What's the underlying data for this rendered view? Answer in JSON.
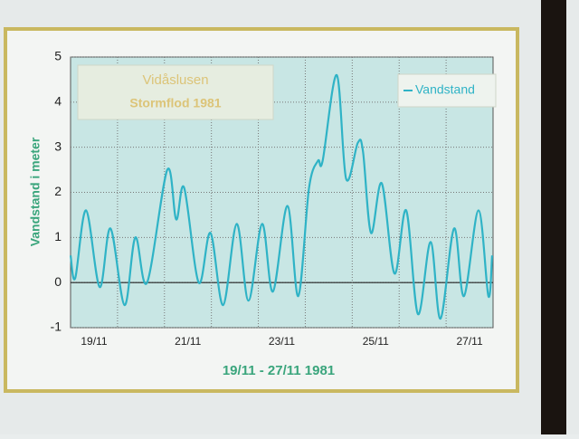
{
  "chart_data": {
    "type": "line",
    "title": "Vidåslusen",
    "subtitle": "Stormflod 1981",
    "x_label": "19/11 - 27/11 1981",
    "y_label": "Vandstand i meter",
    "x": [
      19.0,
      19.1,
      19.33,
      19.62,
      19.85,
      20.15,
      20.38,
      20.63,
      21.06,
      21.25,
      21.42,
      21.73,
      21.98,
      22.25,
      22.54,
      22.79,
      23.08,
      23.31,
      23.62,
      23.85,
      24.08,
      24.27,
      24.37,
      24.67,
      24.87,
      25.12,
      25.23,
      25.4,
      25.63,
      25.9,
      26.15,
      26.4,
      26.67,
      26.88,
      27.17,
      27.38,
      27.69,
      27.9,
      27.98
    ],
    "series": [
      {
        "name": "Vandstand",
        "color": "#2fb3c6",
        "values": [
          0.6,
          0.1,
          1.6,
          -0.1,
          1.2,
          -0.5,
          1.0,
          0.0,
          2.5,
          1.4,
          2.1,
          0.0,
          1.1,
          -0.5,
          1.3,
          -0.4,
          1.3,
          -0.2,
          1.7,
          -0.3,
          2.1,
          2.7,
          2.7,
          4.6,
          2.3,
          3.1,
          2.9,
          1.1,
          2.2,
          0.2,
          1.6,
          -0.7,
          0.9,
          -0.8,
          1.2,
          -0.3,
          1.6,
          -0.3,
          0.6
        ]
      }
    ],
    "xlim": [
      19,
      28
    ],
    "xticks": [
      {
        "value": 19,
        "label": "19/11"
      },
      {
        "value": 21,
        "label": "21/11"
      },
      {
        "value": 23,
        "label": "23/11"
      },
      {
        "value": 25,
        "label": "25/11"
      },
      {
        "value": 27,
        "label": "27/11"
      }
    ],
    "xminorticks": [
      20,
      21,
      22,
      23,
      24,
      25,
      26,
      27
    ],
    "ylim": [
      -1,
      5
    ],
    "yticks": [
      -1,
      0,
      1,
      2,
      3,
      4,
      5
    ],
    "grid": true,
    "legend": "upper right"
  }
}
